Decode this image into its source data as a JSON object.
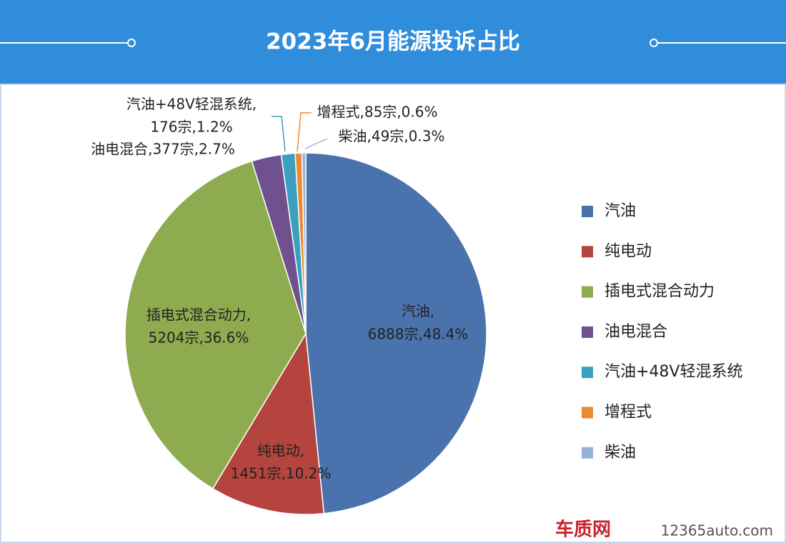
{
  "chart_data": {
    "type": "pie",
    "title": "2023年6月能源投诉占比",
    "categories": [
      "汽油",
      "纯电动",
      "插电式混合动力",
      "油电混合",
      "汽油+48V轻混系统",
      "增程式",
      "柴油"
    ],
    "values": [
      6888,
      1451,
      5204,
      377,
      176,
      85,
      49
    ],
    "value_labels": [
      [
        "汽油,",
        "6888宗,48.4%"
      ],
      [
        "纯电动,",
        "1451宗,10.2%"
      ],
      [
        "插电式混合动力,",
        "5204宗,36.6%"
      ],
      [
        "油电混合,377宗,2.7%"
      ],
      [
        "汽油+48V轻混系统,",
        "176宗,1.2%"
      ],
      [
        "增程式,85宗,0.6%"
      ],
      [
        "柴油,49宗,0.3%"
      ]
    ],
    "colors": [
      "#4a72ad",
      "#b5443f",
      "#8eab4f",
      "#6f5190",
      "#3ba0bf",
      "#ec8a34",
      "#98b1d8"
    ],
    "legend": "right",
    "watermark": [
      "车质网",
      "12365auto.com"
    ]
  }
}
